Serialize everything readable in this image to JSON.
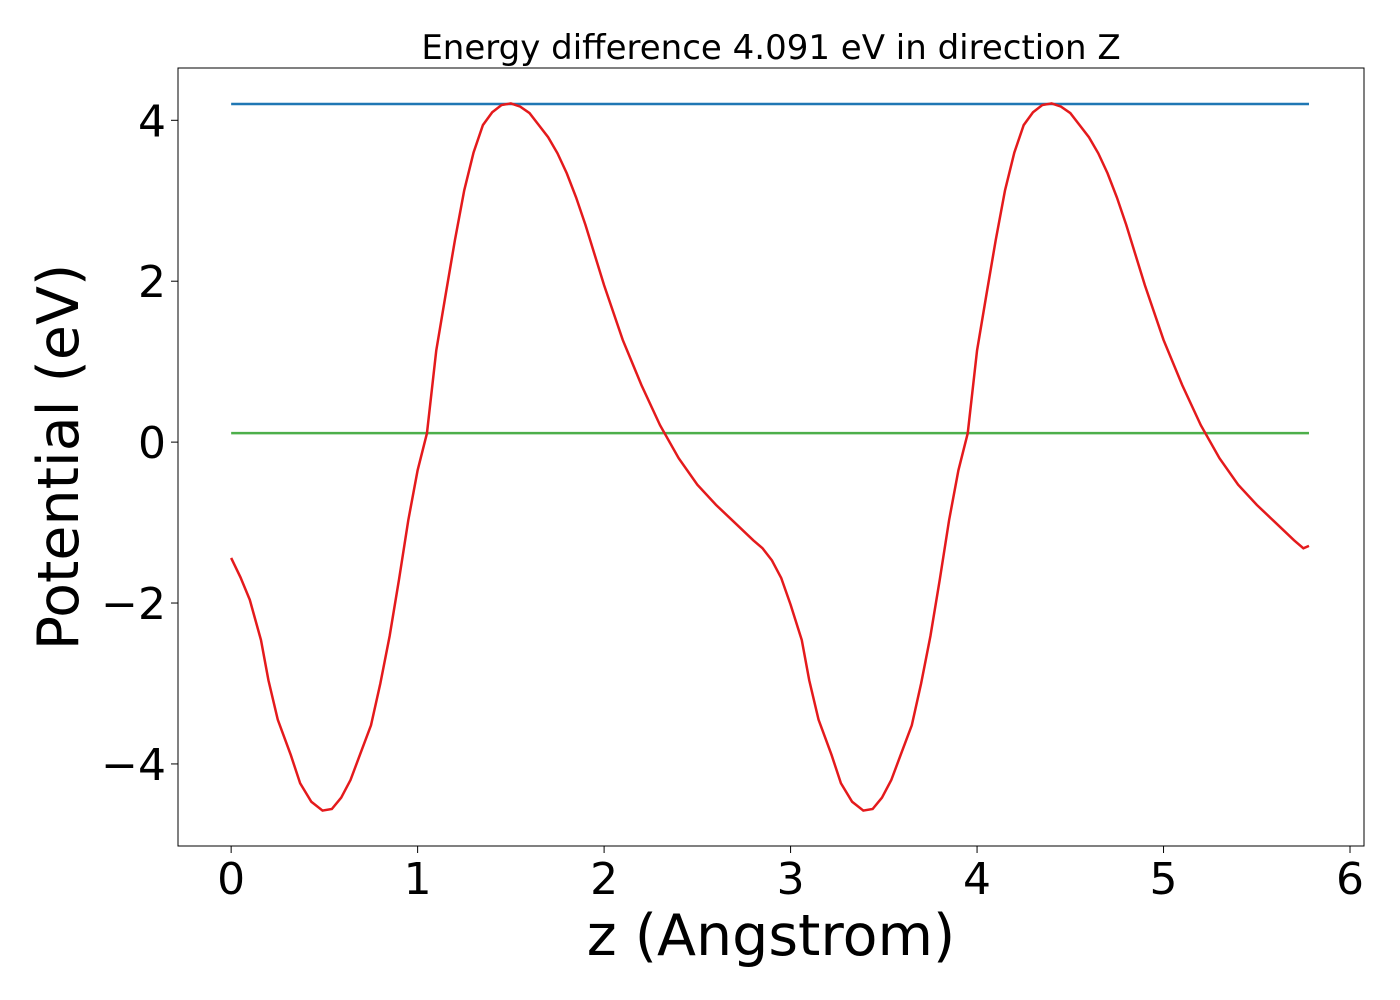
{
  "chart_data": {
    "type": "line",
    "title": "Energy difference 4.091 eV in direction Z",
    "xlabel": "z (Angstrom)",
    "ylabel": "Potential (eV)",
    "xlim": [
      -0.285,
      6.075
    ],
    "ylim": [
      -5.02,
      4.65
    ],
    "xticks": [
      0,
      1,
      2,
      3,
      4,
      5,
      6
    ],
    "yticks": [
      {
        "value": -4,
        "label": "−4"
      },
      {
        "value": -2,
        "label": "−2"
      },
      0,
      2,
      4
    ],
    "series": [
      {
        "color": "#1f77b4",
        "x": [
          0,
          5.78
        ],
        "values": [
          4.203,
          4.203
        ]
      },
      {
        "color": "#4daf4a",
        "x": [
          0,
          5.78
        ],
        "values": [
          0.112,
          0.112
        ]
      },
      {
        "color": "#e41a1c",
        "x": [
          0,
          0.05,
          0.1,
          0.16,
          0.2,
          0.25,
          0.32,
          0.37,
          0.43,
          0.49,
          0.54,
          0.59,
          0.64,
          0.69,
          0.75,
          0.8,
          0.85,
          0.9,
          0.95,
          1.0,
          1.05,
          1.1,
          1.15,
          1.2,
          1.25,
          1.3,
          1.35,
          1.4,
          1.45,
          1.5,
          1.55,
          1.6,
          1.65,
          1.7,
          1.75,
          1.8,
          1.85,
          1.9,
          2.0,
          2.1,
          2.2,
          2.3,
          2.4,
          2.5,
          2.6,
          2.7,
          2.8,
          2.85,
          2.9,
          2.95,
          3.0,
          3.06,
          3.1,
          3.15,
          3.22,
          3.27,
          3.33,
          3.39,
          3.44,
          3.49,
          3.54,
          3.59,
          3.65,
          3.7,
          3.75,
          3.8,
          3.85,
          3.9,
          3.95,
          4.0,
          4.05,
          4.1,
          4.15,
          4.2,
          4.25,
          4.3,
          4.35,
          4.4,
          4.45,
          4.5,
          4.55,
          4.6,
          4.65,
          4.7,
          4.75,
          4.8,
          4.9,
          5.0,
          5.1,
          5.2,
          5.3,
          5.4,
          5.5,
          5.6,
          5.7,
          5.75,
          5.78
        ],
        "values": [
          -1.44,
          -1.68,
          -1.96,
          -2.46,
          -2.96,
          -3.45,
          -3.89,
          -4.24,
          -4.47,
          -4.58,
          -4.56,
          -4.42,
          -4.2,
          -3.89,
          -3.52,
          -3.0,
          -2.41,
          -1.71,
          -0.97,
          -0.35,
          0.11,
          1.14,
          1.83,
          2.51,
          3.13,
          3.6,
          3.94,
          4.1,
          4.19,
          4.21,
          4.17,
          4.09,
          3.94,
          3.79,
          3.59,
          3.34,
          3.04,
          2.7,
          1.95,
          1.27,
          0.71,
          0.21,
          -0.2,
          -0.53,
          -0.78,
          -1.0,
          -1.22,
          -1.32,
          -1.47,
          -1.69,
          -2.02,
          -2.46,
          -2.96,
          -3.45,
          -3.89,
          -4.24,
          -4.47,
          -4.58,
          -4.56,
          -4.42,
          -4.2,
          -3.89,
          -3.52,
          -3.0,
          -2.41,
          -1.71,
          -0.97,
          -0.35,
          0.11,
          1.14,
          1.83,
          2.51,
          3.13,
          3.6,
          3.94,
          4.1,
          4.19,
          4.21,
          4.17,
          4.09,
          3.94,
          3.79,
          3.59,
          3.34,
          3.04,
          2.7,
          1.95,
          1.27,
          0.71,
          0.21,
          -0.2,
          -0.53,
          -0.78,
          -1.0,
          -1.22,
          -1.32,
          -1.29
        ]
      }
    ]
  }
}
